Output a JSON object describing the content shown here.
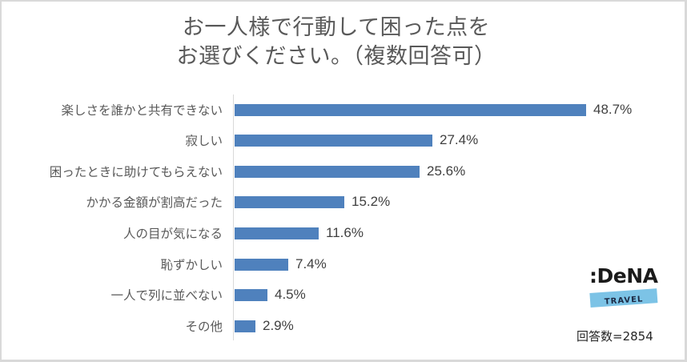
{
  "chart_data": {
    "type": "bar",
    "orientation": "horizontal",
    "title": "お一人様で行動して困った点をお選びください。（複数回答可）",
    "title_lines": [
      "お一人様で行動して困った点を",
      "お選びください。（複数回答可）"
    ],
    "categories": [
      "楽しさを誰かと共有できない",
      "寂しい",
      "困ったときに助けてもらえない",
      "かかる金額が割高だった",
      "人の目が気になる",
      "恥ずかしい",
      "一人で列に並べない",
      "その他"
    ],
    "values": [
      48.7,
      27.4,
      25.6,
      15.2,
      11.6,
      7.4,
      4.5,
      2.9
    ],
    "value_labels": [
      "48.7%",
      "27.4%",
      "25.6%",
      "15.2%",
      "11.6%",
      "7.4%",
      "4.5%",
      "2.9%"
    ],
    "unit": "%",
    "xlabel": "",
    "ylabel": "",
    "xlim": [
      0,
      55
    ],
    "grid": false,
    "legend": null,
    "bar_color": "#4f81bd",
    "annotations": [
      "回答数=2854"
    ]
  },
  "title": {
    "line1": "お一人様で行動して困った点を",
    "line2": "お選びください。（複数回答可）"
  },
  "logo": {
    "word": ":DeNA",
    "sub": "TRAVEL"
  },
  "footnote": "回答数=2854",
  "rows": [
    {
      "label": "楽しさを誰かと共有できない",
      "value": 48.7,
      "text": "48.7%"
    },
    {
      "label": "寂しい",
      "value": 27.4,
      "text": "27.4%"
    },
    {
      "label": "困ったときに助けてもらえない",
      "value": 25.6,
      "text": "25.6%"
    },
    {
      "label": "かかる金額が割高だった",
      "value": 15.2,
      "text": "15.2%"
    },
    {
      "label": "人の目が気になる",
      "value": 11.6,
      "text": "11.6%"
    },
    {
      "label": "恥ずかしい",
      "value": 7.4,
      "text": "7.4%"
    },
    {
      "label": "一人で列に並べない",
      "value": 4.5,
      "text": "4.5%"
    },
    {
      "label": "その他",
      "value": 2.9,
      "text": "2.9%"
    }
  ]
}
